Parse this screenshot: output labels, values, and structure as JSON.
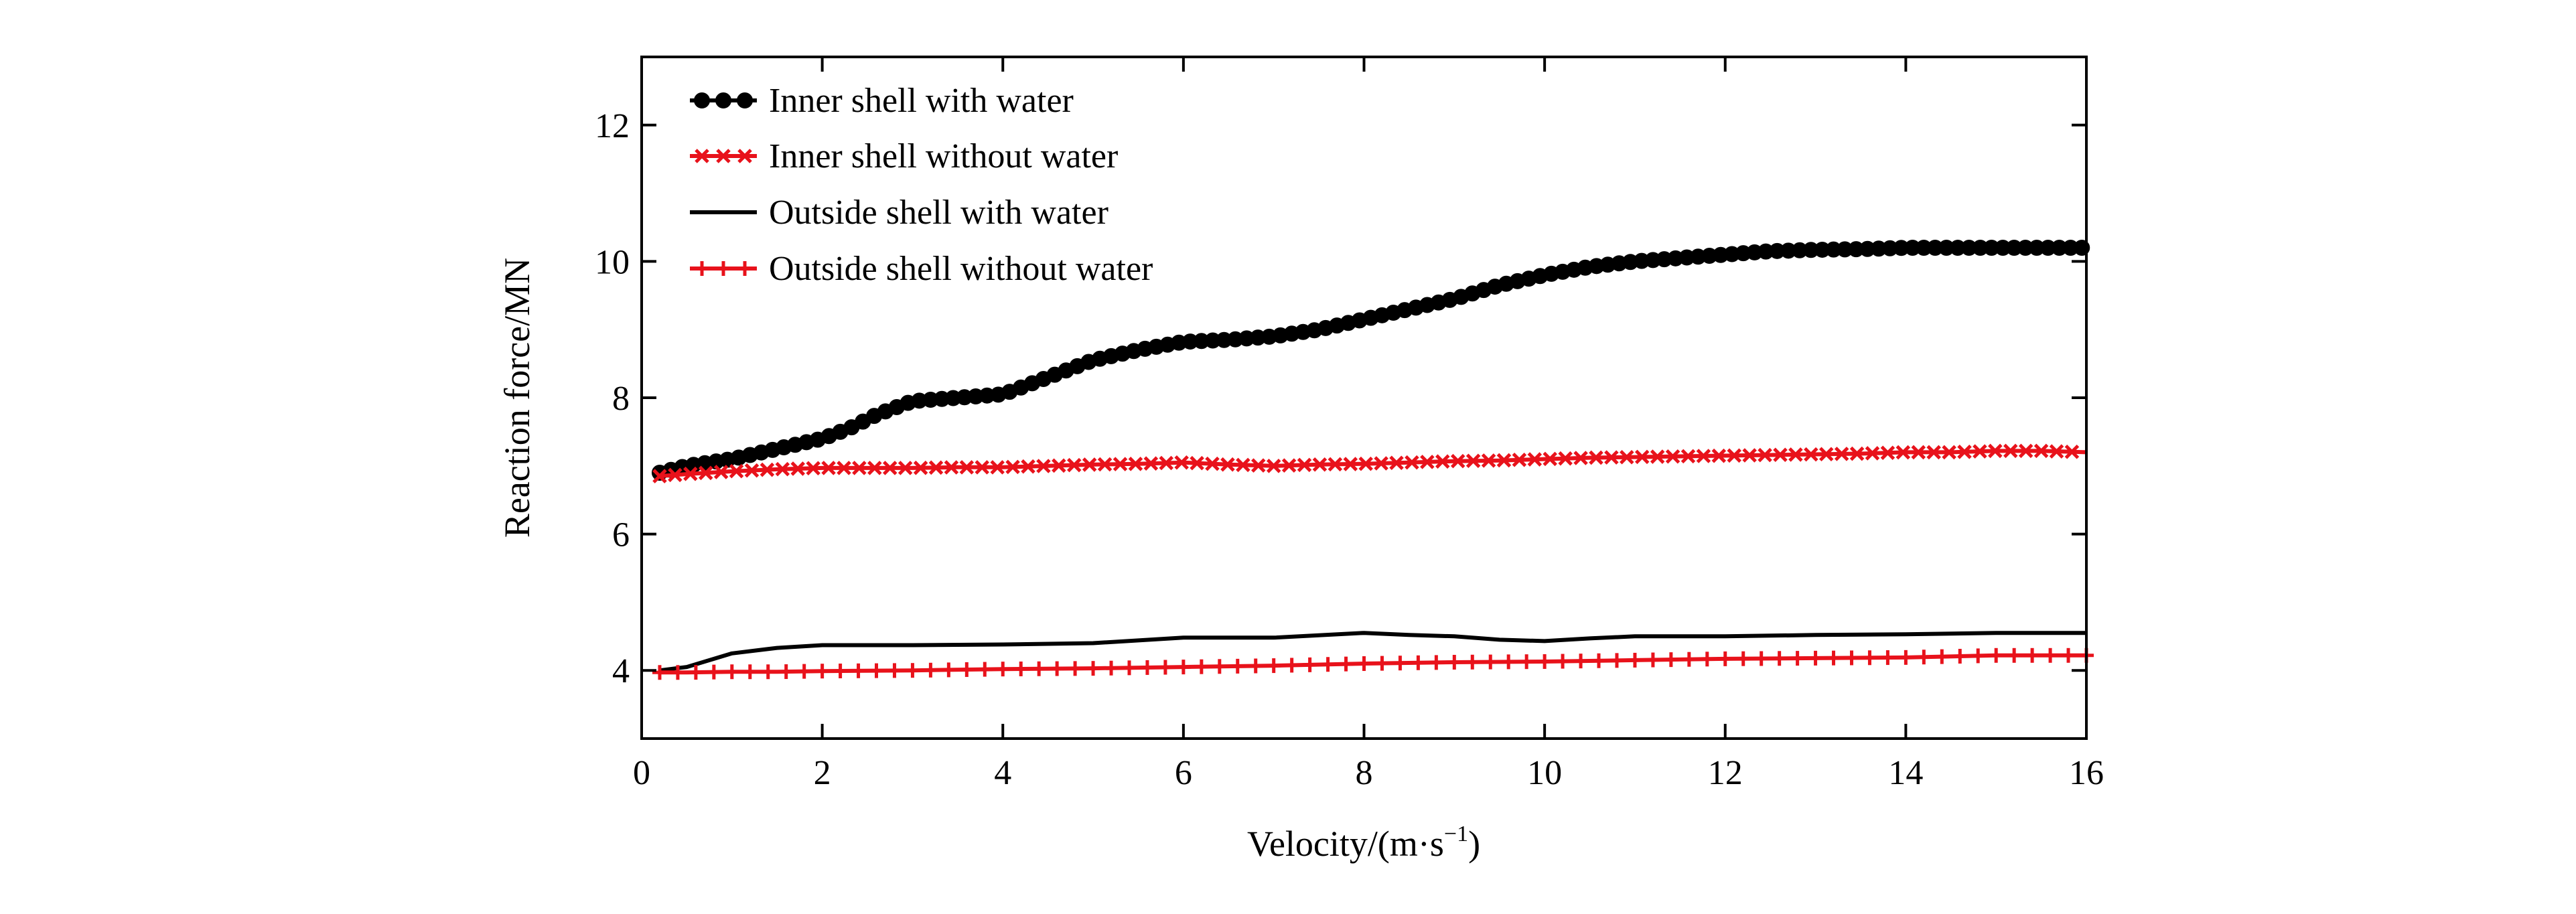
{
  "chart_data": {
    "type": "line",
    "title": "",
    "xlabel": "Velocity/(m·s",
    "xlabel_sup": "−1",
    "xlabel_close": ")",
    "ylabel": "Reaction force/MN",
    "xlim": [
      0,
      16
    ],
    "ylim": [
      3,
      13
    ],
    "xticks": [
      0,
      2,
      4,
      6,
      8,
      10,
      12,
      14,
      16
    ],
    "yticks": [
      4,
      6,
      8,
      10,
      12
    ],
    "grid": false,
    "legend_position": "top-left",
    "series": [
      {
        "name": "Inner shell with water",
        "color": "#000000",
        "marker": "circle",
        "x": [
          0.2,
          0.5,
          1.0,
          1.5,
          2.0,
          2.3,
          2.6,
          3.0,
          3.5,
          4.0,
          4.5,
          5.0,
          5.5,
          6.0,
          6.5,
          7.0,
          7.5,
          8.0,
          8.5,
          9.0,
          9.5,
          10.0,
          10.5,
          11.0,
          11.5,
          12.0,
          12.5,
          13.0,
          13.5,
          14.0,
          14.5,
          15.0,
          15.5,
          16.0
        ],
        "y": [
          6.9,
          7.0,
          7.1,
          7.25,
          7.4,
          7.55,
          7.75,
          7.95,
          8.0,
          8.05,
          8.3,
          8.55,
          8.7,
          8.82,
          8.85,
          8.9,
          9.0,
          9.15,
          9.3,
          9.45,
          9.65,
          9.8,
          9.92,
          10.0,
          10.05,
          10.1,
          10.15,
          10.17,
          10.18,
          10.2,
          10.2,
          10.2,
          10.2,
          10.2
        ]
      },
      {
        "name": "Inner shell without water",
        "color": "#e8121b",
        "marker": "x",
        "x": [
          0.2,
          0.5,
          1.0,
          1.5,
          2.0,
          2.5,
          3.0,
          3.5,
          4.0,
          4.5,
          5.0,
          5.5,
          6.0,
          6.5,
          7.0,
          7.5,
          8.0,
          8.5,
          9.0,
          9.5,
          10.0,
          10.5,
          11.0,
          11.5,
          12.0,
          12.5,
          13.0,
          13.5,
          14.0,
          14.5,
          15.0,
          15.5,
          16.0
        ],
        "y": [
          6.85,
          6.88,
          6.92,
          6.95,
          6.97,
          6.97,
          6.97,
          6.98,
          6.98,
          7.0,
          7.02,
          7.03,
          7.05,
          7.02,
          7.0,
          7.02,
          7.03,
          7.05,
          7.07,
          7.08,
          7.1,
          7.12,
          7.13,
          7.14,
          7.15,
          7.16,
          7.17,
          7.18,
          7.2,
          7.2,
          7.22,
          7.22,
          7.2
        ]
      },
      {
        "name": "Outside shell with water",
        "color": "#000000",
        "marker": "none",
        "x": [
          0.2,
          0.5,
          1.0,
          1.5,
          2.0,
          3.0,
          4.0,
          5.0,
          6.0,
          7.0,
          8.0,
          8.5,
          9.0,
          9.5,
          10.0,
          10.5,
          11.0,
          12.0,
          13.0,
          14.0,
          15.0,
          16.0
        ],
        "y": [
          4.0,
          4.05,
          4.25,
          4.33,
          4.37,
          4.37,
          4.38,
          4.4,
          4.48,
          4.48,
          4.55,
          4.52,
          4.5,
          4.45,
          4.43,
          4.47,
          4.5,
          4.5,
          4.52,
          4.53,
          4.55,
          4.55
        ]
      },
      {
        "name": "Outside shell without water",
        "color": "#e8121b",
        "marker": "plus",
        "x": [
          0.2,
          0.5,
          1.0,
          1.5,
          2.0,
          3.0,
          4.0,
          5.0,
          6.0,
          7.0,
          8.0,
          9.0,
          10.0,
          11.0,
          12.0,
          13.0,
          14.0,
          15.0,
          16.0
        ],
        "y": [
          3.97,
          3.97,
          3.98,
          3.98,
          3.99,
          4.0,
          4.02,
          4.03,
          4.05,
          4.07,
          4.1,
          4.12,
          4.13,
          4.15,
          4.17,
          4.18,
          4.19,
          4.22,
          4.22
        ]
      }
    ]
  }
}
